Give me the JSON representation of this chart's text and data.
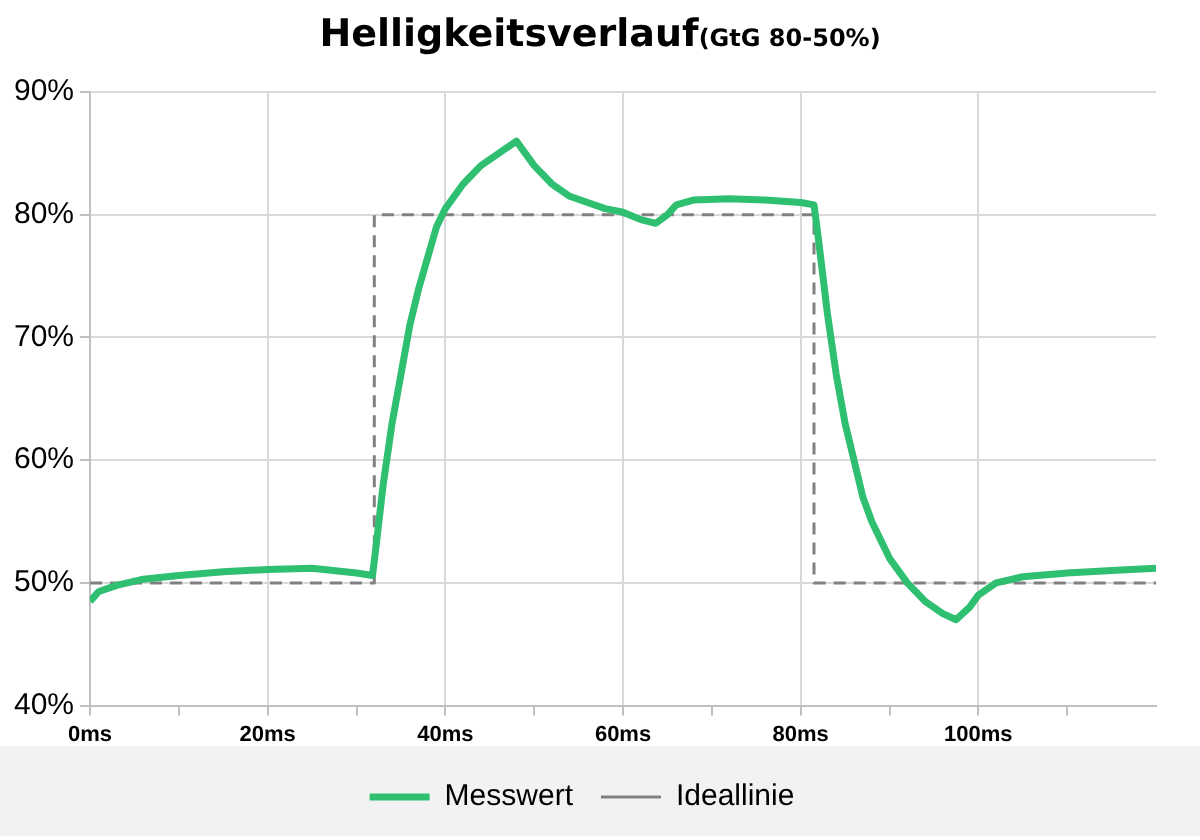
{
  "chart_data": {
    "type": "line",
    "title": "Helligkeitsverlauf",
    "subtitle": "(GtG 80-50%)",
    "xlim": [
      0,
      120
    ],
    "xticks": [
      {
        "value": 0,
        "label": "0ms"
      },
      {
        "value": 10,
        "label": null
      },
      {
        "value": 20,
        "label": "20ms"
      },
      {
        "value": 30,
        "label": null
      },
      {
        "value": 40,
        "label": "40ms"
      },
      {
        "value": 50,
        "label": null
      },
      {
        "value": 60,
        "label": "60ms"
      },
      {
        "value": 70,
        "label": null
      },
      {
        "value": 80,
        "label": "80ms"
      },
      {
        "value": 90,
        "label": null
      },
      {
        "value": 100,
        "label": "100ms"
      },
      {
        "value": 110,
        "label": null
      }
    ],
    "ylim": [
      40,
      90
    ],
    "yticks": [
      {
        "value": 40,
        "label": "40%"
      },
      {
        "value": 50,
        "label": "50%"
      },
      {
        "value": 60,
        "label": "60%"
      },
      {
        "value": 70,
        "label": "70%"
      },
      {
        "value": 80,
        "label": "80%"
      },
      {
        "value": 90,
        "label": "90%"
      }
    ],
    "grid": true,
    "legend": "bottom",
    "marker": "none",
    "series": [
      {
        "name": "Messwert",
        "color": "#2fbf71",
        "line_style": "solid",
        "x": [
          0,
          1,
          3,
          6,
          10,
          15,
          20,
          25,
          30,
          31.8,
          32.2,
          33,
          34,
          35,
          36,
          37,
          38,
          39,
          40,
          42,
          44,
          46,
          48,
          49,
          50,
          52,
          54,
          56,
          58,
          60,
          62,
          63.7,
          65,
          66,
          68,
          72,
          76,
          80,
          81.5,
          82,
          83,
          84,
          85,
          86,
          87,
          88,
          90,
          92,
          94,
          96,
          97.5,
          99,
          100,
          102,
          105,
          110,
          115,
          120
        ],
        "values": [
          48.5,
          49.3,
          49.8,
          50.3,
          50.6,
          50.9,
          51.1,
          51.2,
          50.8,
          50.6,
          53,
          58,
          63,
          67,
          71,
          74,
          76.5,
          79,
          80.5,
          82.5,
          84,
          85,
          86,
          85,
          84,
          82.5,
          81.5,
          81,
          80.5,
          80.2,
          79.6,
          79.3,
          80,
          80.8,
          81.2,
          81.3,
          81.2,
          81,
          80.8,
          78,
          72,
          67,
          63,
          60,
          57,
          55,
          52,
          50,
          48.5,
          47.5,
          47,
          48,
          49,
          50,
          50.5,
          50.8,
          51,
          51.2
        ]
      },
      {
        "name": "Ideallinie",
        "color": "#808080",
        "line_style": "dashed",
        "x": [
          0,
          32,
          32,
          81.5,
          81.5,
          120
        ],
        "values": [
          50,
          50,
          80,
          80,
          50,
          50
        ]
      }
    ]
  }
}
